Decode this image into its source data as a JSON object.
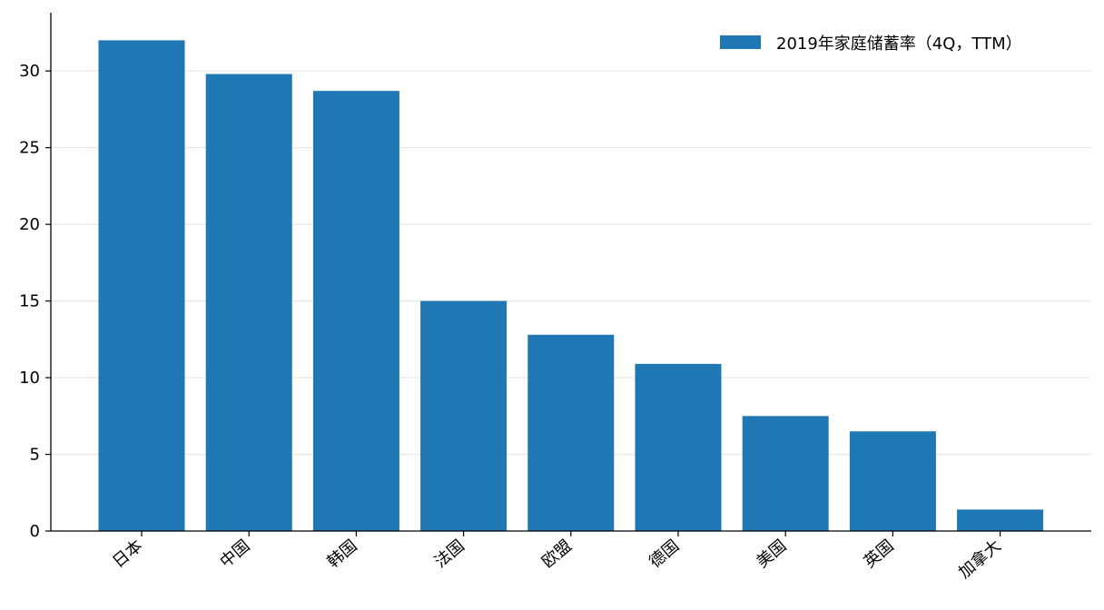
{
  "chart_data": {
    "type": "bar",
    "title": "",
    "xlabel": "",
    "ylabel": "",
    "categories": [
      "日本",
      "中国",
      "韩国",
      "法国",
      "欧盟",
      "德国",
      "美国",
      "英国",
      "加拿大"
    ],
    "series": [
      {
        "name": "2019年家庭储蓄率（4Q，TTM）",
        "values": [
          32.0,
          29.8,
          28.7,
          15.0,
          12.8,
          10.9,
          7.5,
          6.5,
          1.4
        ]
      }
    ],
    "ylim": [
      0,
      33.8
    ],
    "yticks": [
      0,
      5,
      10,
      15,
      20,
      25,
      30
    ],
    "grid": "horizontal",
    "legend_position": "top-right",
    "colors": {
      "bar": "#1f77b4",
      "grid": "#e6e6e6",
      "axis": "#000000"
    }
  }
}
